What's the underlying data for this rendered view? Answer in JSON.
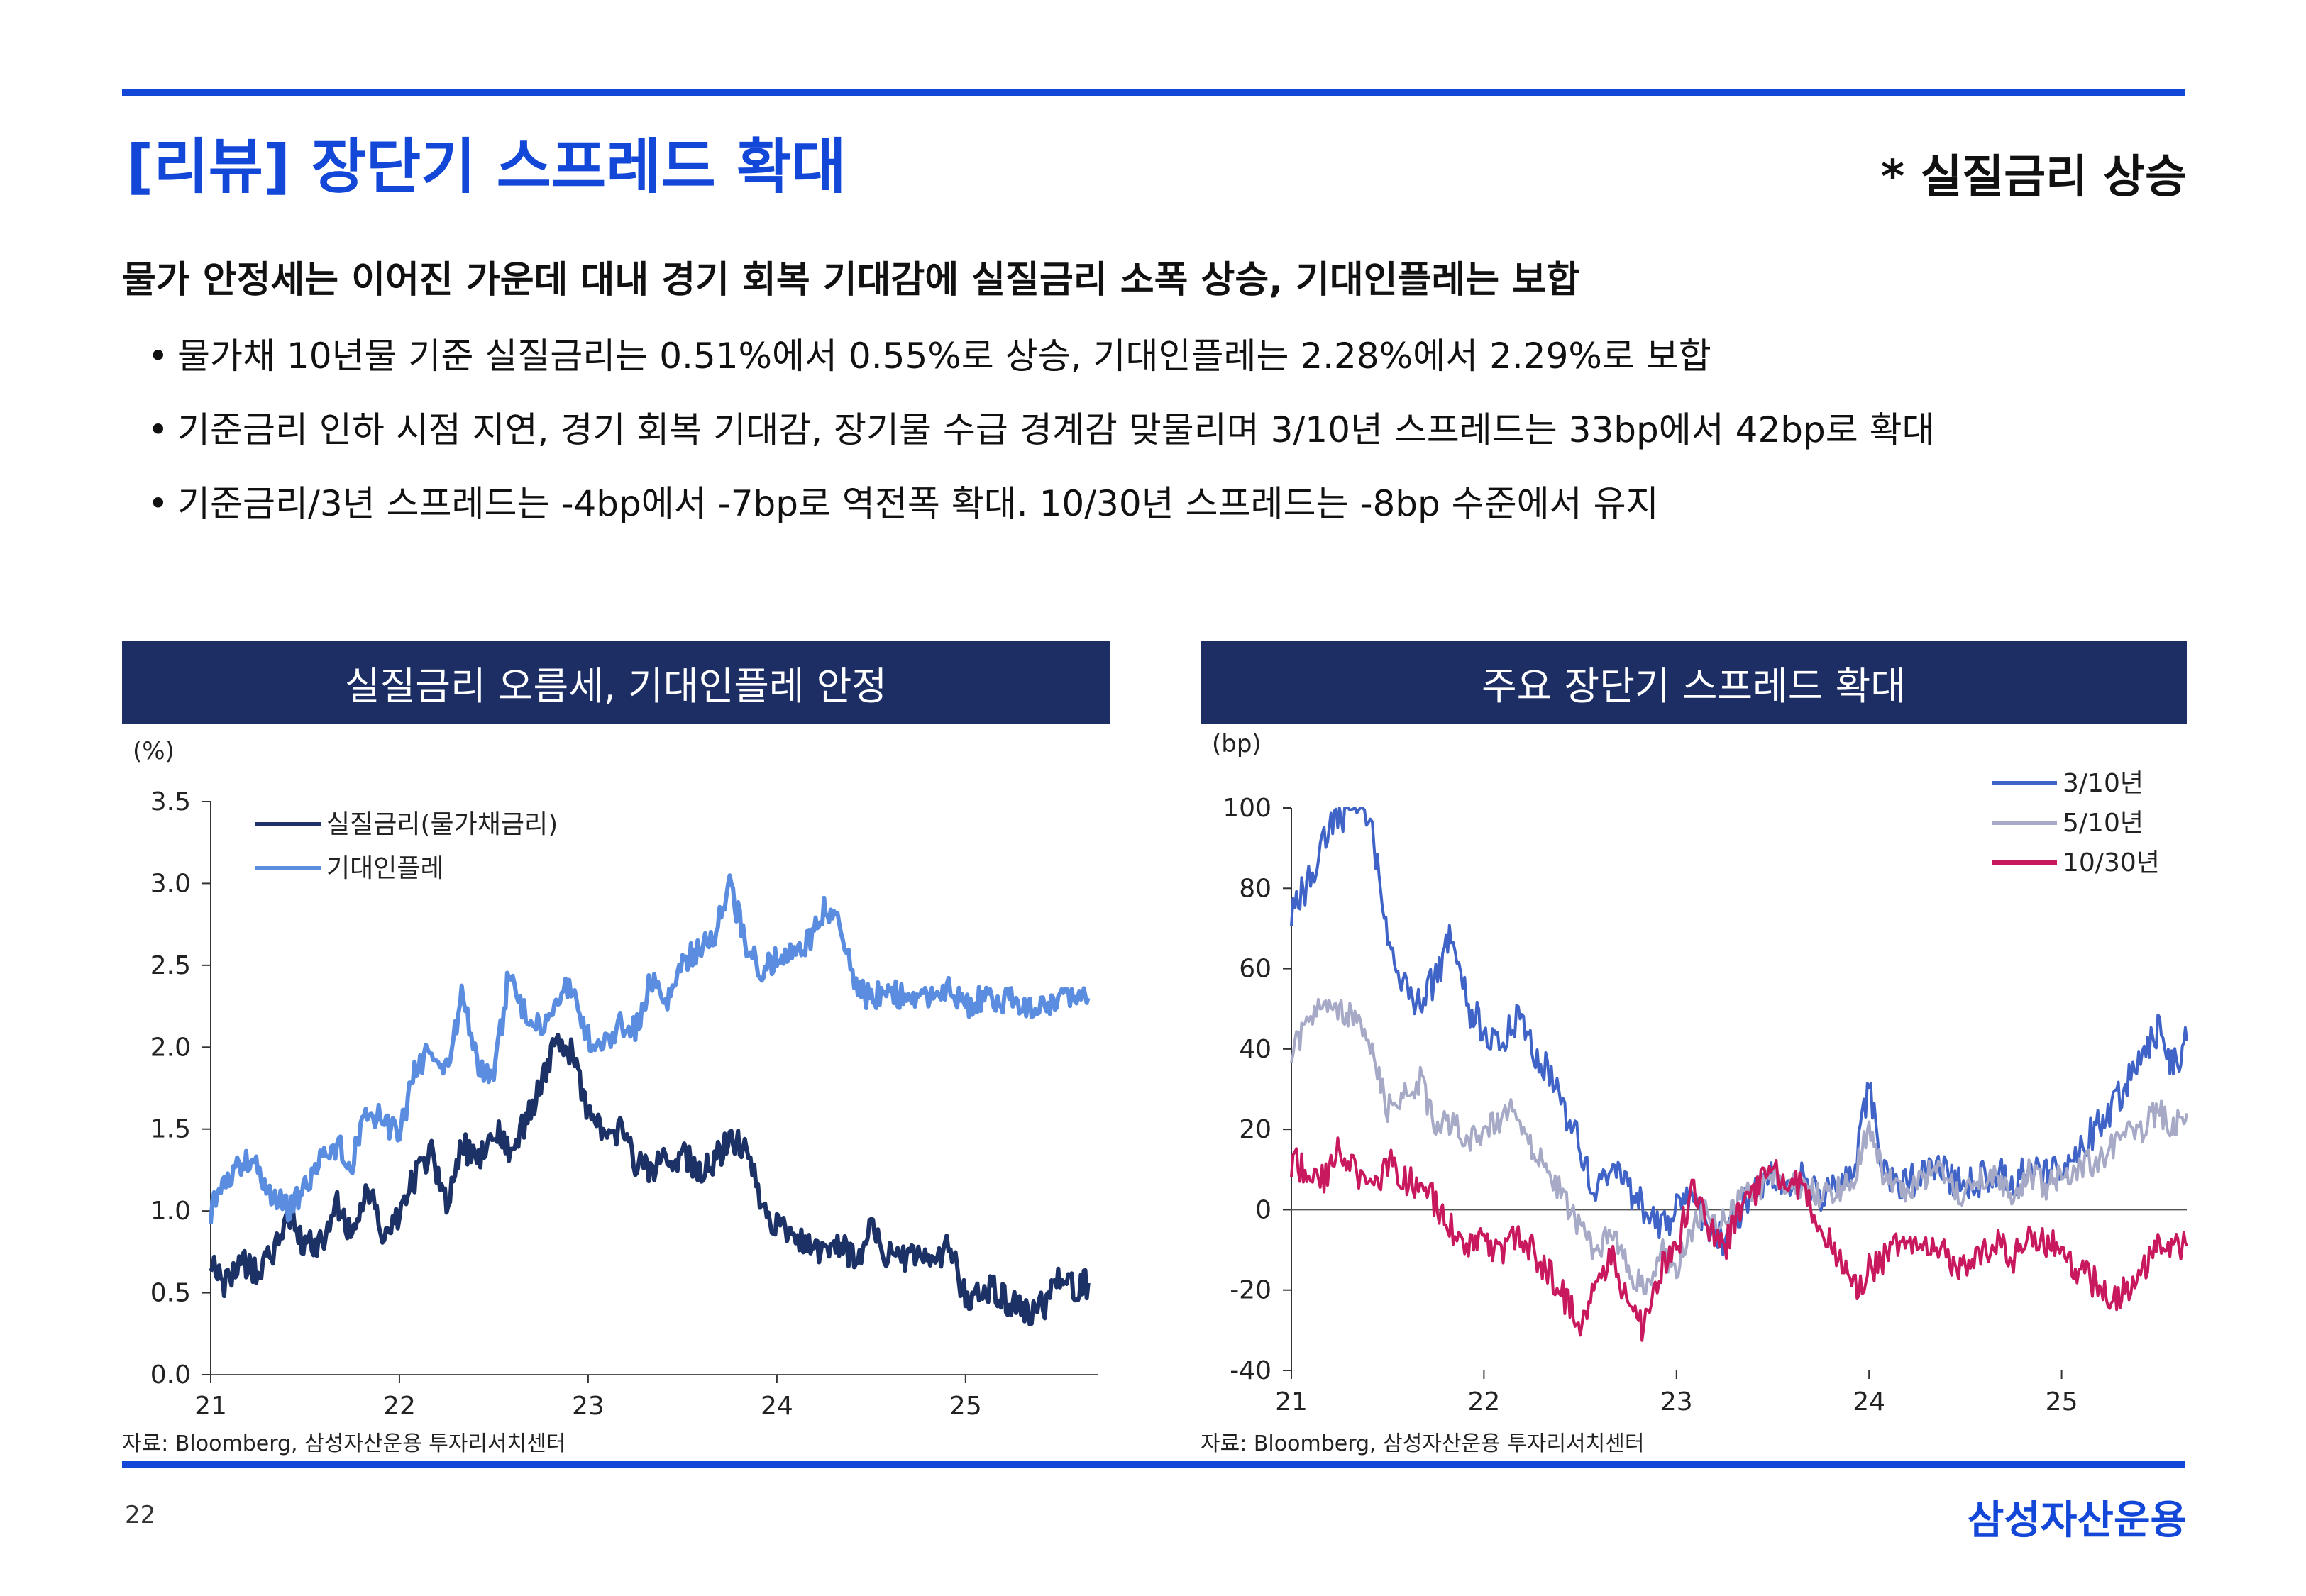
{
  "header": {
    "title": "[리뷰] 장단기 스프레드 확대",
    "tag": "* 실질금리 상승"
  },
  "headline": "물가 안정세는 이어진 가운데 대내 경기 회복 기대감에 실질금리 소폭 상승, 기대인플레는 보합",
  "bullets": [
    "물가채 10년물 기준 실질금리는 0.51%에서 0.55%로 상승, 기대인플레는 2.28%에서 2.29%로 보합",
    "기준금리 인하 시점 지연, 경기 회복 기대감, 장기물 수급 경계감 맞물리며 3/10년 스프레드는 33bp에서 42bp로 확대",
    "기준금리/3년 스프레드는 -4bp에서 -7bp로 역전폭 확대. 10/30년 스프레드는 -8bp 수준에서 유지"
  ],
  "footer": {
    "page": "22",
    "brand": "삼성자산운용"
  },
  "colors": {
    "accent": "#1347d8",
    "panel": "#1c2e63"
  },
  "chart_data": [
    {
      "type": "line",
      "title": "실질금리 오름세, 기대인플레 안정",
      "ylabel": "(%)",
      "ylim": [
        0,
        3.5
      ],
      "yticks": [
        "0.0",
        "0.5",
        "1.0",
        "1.5",
        "2.0",
        "2.5",
        "3.0",
        "3.5"
      ],
      "xlim": [
        2021.0,
        2025.7
      ],
      "xticks": [
        "21",
        "22",
        "23",
        "24",
        "25"
      ],
      "legend_position": "top-left",
      "source": "자료: Bloomberg, 삼성자산운용 투자리서치센터",
      "series": [
        {
          "name": "실질금리(물가채금리)",
          "color": "#1c3166",
          "x": [
            2021.0,
            2021.08,
            2021.17,
            2021.25,
            2021.33,
            2021.42,
            2021.5,
            2021.58,
            2021.67,
            2021.75,
            2021.83,
            2021.92,
            2022.0,
            2022.08,
            2022.17,
            2022.25,
            2022.33,
            2022.42,
            2022.5,
            2022.58,
            2022.67,
            2022.75,
            2022.83,
            2022.92,
            2023.0,
            2023.08,
            2023.17,
            2023.25,
            2023.33,
            2023.42,
            2023.5,
            2023.58,
            2023.67,
            2023.75,
            2023.83,
            2023.92,
            2024.0,
            2024.08,
            2024.17,
            2024.25,
            2024.33,
            2024.42,
            2024.5,
            2024.58,
            2024.67,
            2024.75,
            2024.83,
            2024.92,
            2025.0,
            2025.08,
            2025.17,
            2025.25,
            2025.33,
            2025.42,
            2025.5,
            2025.58,
            2025.65
          ],
          "values": [
            0.72,
            0.55,
            0.68,
            0.62,
            0.75,
            0.95,
            0.78,
            0.8,
            1.05,
            0.85,
            1.15,
            0.82,
            1.0,
            1.2,
            1.35,
            1.05,
            1.4,
            1.3,
            1.5,
            1.38,
            1.55,
            1.75,
            2.1,
            1.95,
            1.6,
            1.45,
            1.5,
            1.3,
            1.25,
            1.3,
            1.35,
            1.25,
            1.3,
            1.45,
            1.4,
            1.05,
            0.9,
            0.85,
            0.8,
            0.75,
            0.8,
            0.7,
            0.9,
            0.72,
            0.7,
            0.72,
            0.65,
            0.8,
            0.45,
            0.55,
            0.5,
            0.42,
            0.38,
            0.42,
            0.6,
            0.52,
            0.56
          ]
        },
        {
          "name": "기대인플레",
          "color": "#5a8de0",
          "x": [
            2021.0,
            2021.08,
            2021.17,
            2021.25,
            2021.33,
            2021.42,
            2021.5,
            2021.58,
            2021.67,
            2021.75,
            2021.83,
            2021.92,
            2022.0,
            2022.08,
            2022.17,
            2022.25,
            2022.33,
            2022.42,
            2022.5,
            2022.58,
            2022.67,
            2022.75,
            2022.83,
            2022.92,
            2023.0,
            2023.08,
            2023.17,
            2023.25,
            2023.33,
            2023.42,
            2023.5,
            2023.58,
            2023.67,
            2023.75,
            2023.83,
            2023.92,
            2024.0,
            2024.08,
            2024.17,
            2024.25,
            2024.33,
            2024.42,
            2024.5,
            2024.58,
            2024.67,
            2024.75,
            2024.83,
            2024.92,
            2025.0,
            2025.08,
            2025.17,
            2025.25,
            2025.33,
            2025.42,
            2025.5,
            2025.58,
            2025.65
          ],
          "values": [
            1.0,
            1.2,
            1.3,
            1.25,
            1.1,
            1.0,
            1.15,
            1.35,
            1.4,
            1.3,
            1.6,
            1.55,
            1.45,
            1.85,
            2.0,
            1.85,
            2.3,
            1.9,
            1.8,
            2.45,
            2.2,
            2.1,
            2.3,
            2.4,
            2.05,
            2.0,
            2.15,
            2.1,
            2.4,
            2.3,
            2.5,
            2.6,
            2.7,
            3.0,
            2.65,
            2.45,
            2.55,
            2.6,
            2.65,
            2.85,
            2.8,
            2.35,
            2.3,
            2.35,
            2.3,
            2.28,
            2.3,
            2.35,
            2.25,
            2.3,
            2.28,
            2.3,
            2.25,
            2.22,
            2.3,
            2.28,
            2.3
          ]
        }
      ]
    },
    {
      "type": "line",
      "title": "주요 장단기 스프레드 확대",
      "ylabel": "(bp)",
      "ylim": [
        -40,
        100
      ],
      "yticks": [
        "-40",
        "-20",
        "0",
        "20",
        "40",
        "60",
        "80",
        "100"
      ],
      "xlim": [
        2021.0,
        2025.65
      ],
      "xticks": [
        "21",
        "22",
        "23",
        "24",
        "25"
      ],
      "legend_position": "top-right",
      "source": "자료: Bloomberg, 삼성자산운용 투자리서치센터",
      "series": [
        {
          "name": "3/10년",
          "color": "#3f63c7",
          "x": [
            2021.0,
            2021.08,
            2021.17,
            2021.25,
            2021.33,
            2021.42,
            2021.5,
            2021.58,
            2021.67,
            2021.75,
            2021.83,
            2021.92,
            2022.0,
            2022.08,
            2022.17,
            2022.25,
            2022.33,
            2022.42,
            2022.5,
            2022.58,
            2022.67,
            2022.75,
            2022.83,
            2022.92,
            2023.0,
            2023.08,
            2023.17,
            2023.25,
            2023.33,
            2023.42,
            2023.5,
            2023.58,
            2023.67,
            2023.75,
            2023.83,
            2023.92,
            2024.0,
            2024.08,
            2024.17,
            2024.25,
            2024.33,
            2024.42,
            2024.5,
            2024.58,
            2024.67,
            2024.75,
            2024.83,
            2024.92,
            2025.0,
            2025.08,
            2025.17,
            2025.25,
            2025.33,
            2025.42,
            2025.5,
            2025.58,
            2025.65
          ],
          "values": [
            75,
            80,
            92,
            98,
            100,
            95,
            70,
            55,
            52,
            58,
            68,
            50,
            45,
            42,
            48,
            40,
            35,
            25,
            15,
            5,
            10,
            5,
            0,
            -5,
            0,
            5,
            -5,
            -8,
            0,
            5,
            10,
            5,
            8,
            2,
            5,
            10,
            30,
            10,
            5,
            8,
            12,
            8,
            5,
            8,
            10,
            5,
            12,
            8,
            10,
            15,
            20,
            25,
            30,
            40,
            45,
            35,
            42
          ]
        },
        {
          "name": "5/10년",
          "color": "#a6aac6",
          "x": [
            2021.0,
            2021.08,
            2021.17,
            2021.25,
            2021.33,
            2021.42,
            2021.5,
            2021.58,
            2021.67,
            2021.75,
            2021.83,
            2021.92,
            2022.0,
            2022.08,
            2022.17,
            2022.25,
            2022.33,
            2022.42,
            2022.5,
            2022.58,
            2022.67,
            2022.75,
            2022.83,
            2022.92,
            2023.0,
            2023.08,
            2023.17,
            2023.25,
            2023.33,
            2023.42,
            2023.5,
            2023.58,
            2023.67,
            2023.75,
            2023.83,
            2023.92,
            2024.0,
            2024.08,
            2024.17,
            2024.25,
            2024.33,
            2024.42,
            2024.5,
            2024.58,
            2024.67,
            2024.75,
            2024.83,
            2024.92,
            2025.0,
            2025.08,
            2025.17,
            2025.25,
            2025.33,
            2025.42,
            2025.5,
            2025.58,
            2025.65
          ],
          "values": [
            40,
            45,
            52,
            50,
            48,
            40,
            25,
            28,
            32,
            20,
            22,
            18,
            20,
            22,
            25,
            15,
            10,
            2,
            -5,
            -10,
            -5,
            -15,
            -20,
            -10,
            -15,
            -5,
            0,
            -3,
            2,
            5,
            8,
            5,
            7,
            3,
            5,
            8,
            20,
            8,
            4,
            6,
            10,
            6,
            4,
            7,
            8,
            4,
            9,
            6,
            8,
            10,
            12,
            15,
            18,
            20,
            25,
            20,
            24
          ]
        },
        {
          "name": "10/30년",
          "color": "#c8195e",
          "x": [
            2021.0,
            2021.08,
            2021.17,
            2021.25,
            2021.33,
            2021.42,
            2021.5,
            2021.58,
            2021.67,
            2021.75,
            2021.83,
            2021.92,
            2022.0,
            2022.08,
            2022.17,
            2022.25,
            2022.33,
            2022.42,
            2022.5,
            2022.58,
            2022.67,
            2022.75,
            2022.83,
            2022.92,
            2023.0,
            2023.08,
            2023.17,
            2023.25,
            2023.33,
            2023.42,
            2023.5,
            2023.58,
            2023.67,
            2023.75,
            2023.83,
            2023.92,
            2024.0,
            2024.08,
            2024.17,
            2024.25,
            2024.33,
            2024.42,
            2024.5,
            2024.58,
            2024.67,
            2024.75,
            2024.83,
            2024.92,
            2025.0,
            2025.08,
            2025.17,
            2025.25,
            2025.33,
            2025.42,
            2025.5,
            2025.58,
            2025.65
          ],
          "values": [
            12,
            10,
            8,
            15,
            10,
            5,
            12,
            8,
            5,
            2,
            -5,
            -10,
            -8,
            -12,
            -5,
            -10,
            -15,
            -22,
            -28,
            -20,
            -10,
            -25,
            -30,
            -15,
            -10,
            5,
            -5,
            -10,
            0,
            5,
            10,
            8,
            5,
            -5,
            -10,
            -20,
            -15,
            -12,
            -8,
            -10,
            -8,
            -12,
            -15,
            -10,
            -8,
            -12,
            -5,
            -8,
            -10,
            -15,
            -18,
            -22,
            -20,
            -15,
            -10,
            -8,
            -9
          ]
        }
      ]
    }
  ]
}
